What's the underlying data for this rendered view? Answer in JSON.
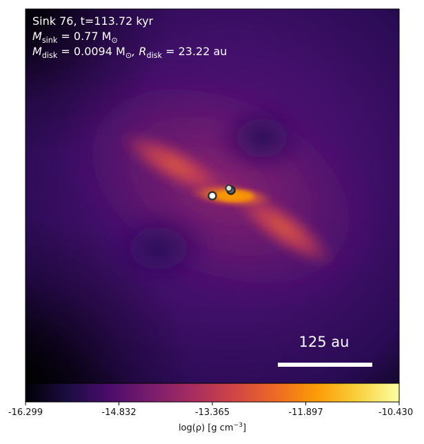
{
  "info": {
    "line1": "Sink 76, t=113.72 kyr",
    "m_sink_label": "M",
    "m_sink_sub": "sink",
    "m_sink_value": " = 0.77 M",
    "m_sink_unit_sub": "⊙",
    "m_disk_label": "M",
    "m_disk_sub": "disk",
    "m_disk_value": " = 0.0094 M",
    "m_disk_unit_sub": "⊙",
    "r_disk_label": ", R",
    "r_disk_sub": "disk",
    "r_disk_value": " = 23.22 au"
  },
  "scale_bar": {
    "label": "125 au"
  },
  "colorbar": {
    "ticks": [
      "-16.299",
      "-14.832",
      "-13.365",
      "-11.897",
      "-10.430"
    ],
    "label_main": "log(ρ) [g cm",
    "label_sup": "−3",
    "label_end": "]",
    "colors": [
      "#000004",
      "#1b0c41",
      "#4a0c6b",
      "#781c6d",
      "#a52c60",
      "#cf4446",
      "#ed6925",
      "#fb9b06",
      "#f7d13d",
      "#fcffa4"
    ]
  },
  "sinks": [
    {
      "name": "sink-a",
      "fill": "#ffffff",
      "edge": "#333333"
    },
    {
      "name": "sink-b",
      "fill": "#dddddd",
      "edge": "#333333"
    },
    {
      "name": "sink-c",
      "fill": "#666666",
      "edge": "#222222"
    }
  ]
}
